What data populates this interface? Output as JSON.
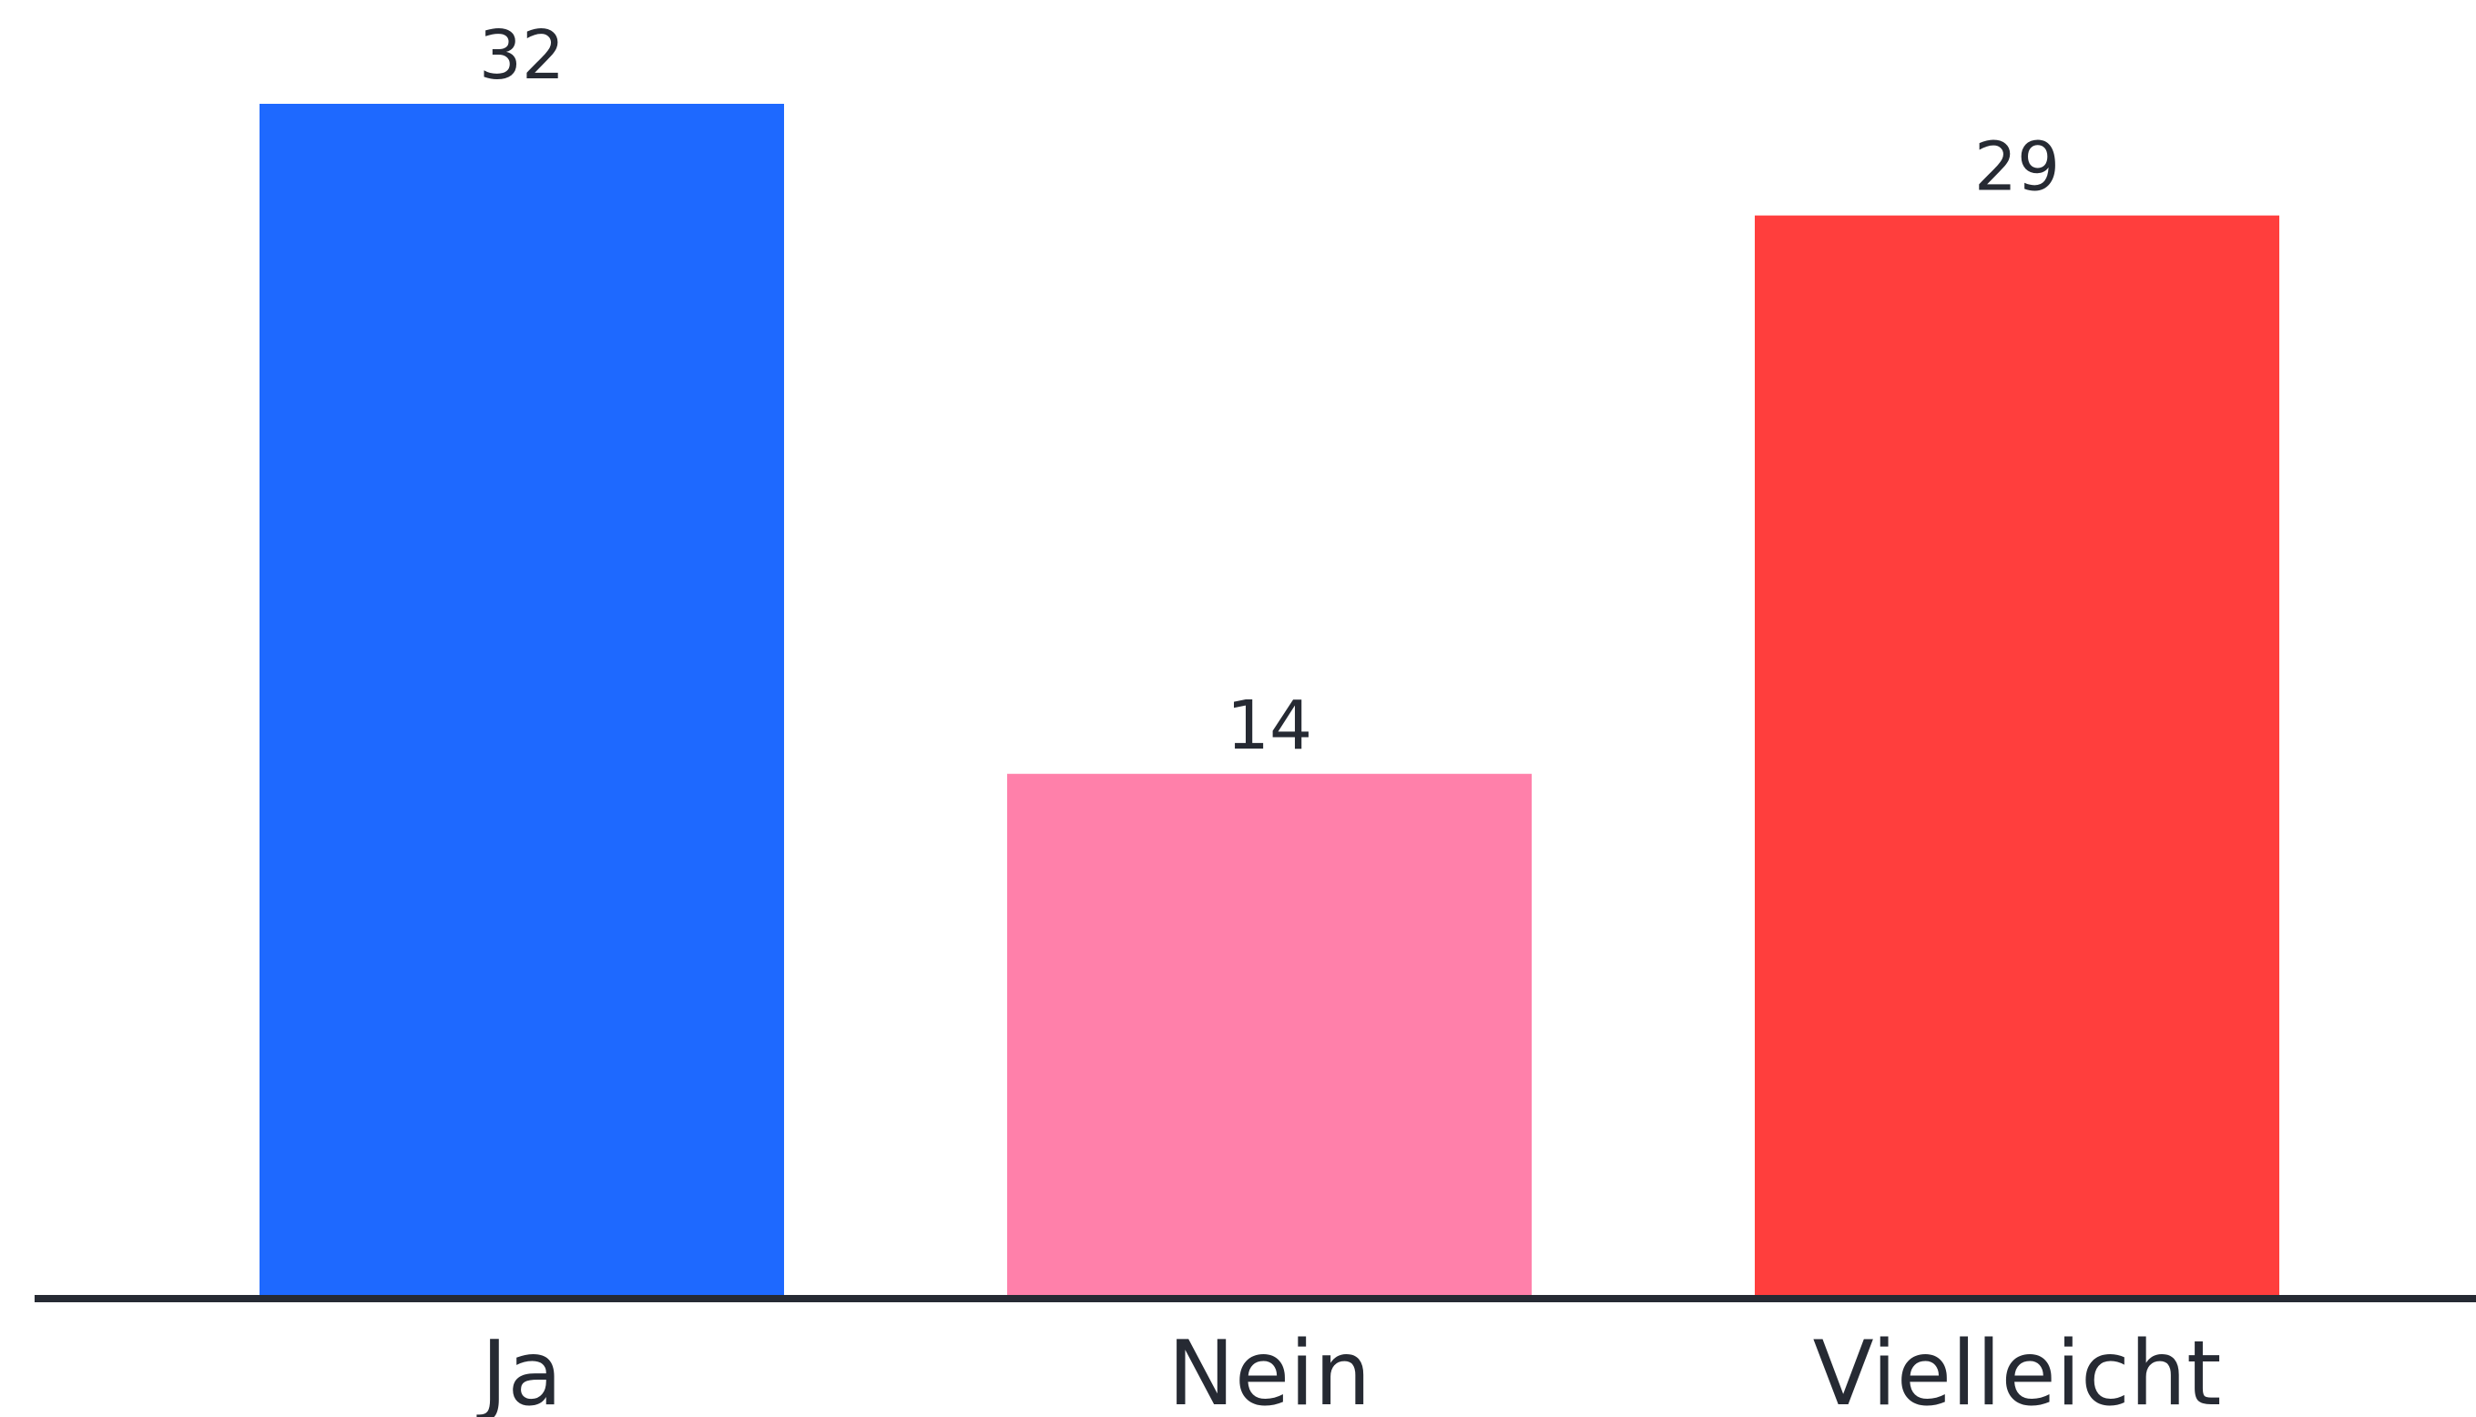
{
  "chart_data": {
    "type": "bar",
    "categories": [
      "Ja",
      "Nein",
      "Vielleicht"
    ],
    "values": [
      32,
      14,
      29
    ],
    "value_labels": [
      "32",
      "14",
      "29"
    ],
    "colors": [
      "#1e69ff",
      "#ff80aa",
      "#ff3e3d"
    ],
    "axis_color": "#262a33",
    "title": "",
    "xlabel": "",
    "ylabel": "",
    "ylim": [
      0,
      32
    ],
    "grid": false,
    "legend": "none"
  }
}
